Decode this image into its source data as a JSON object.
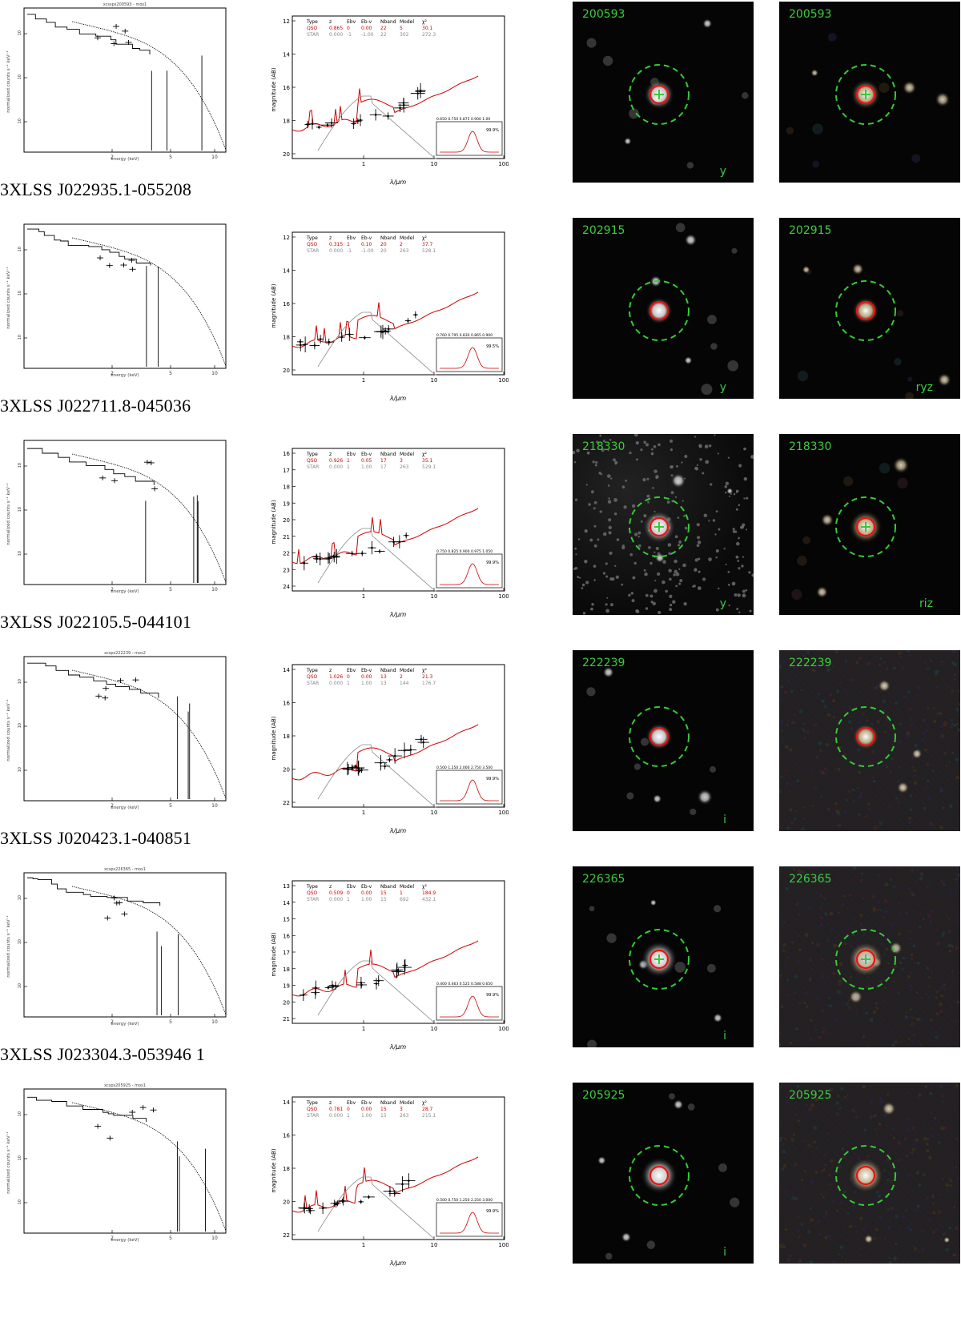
{
  "sources": [
    {
      "name": "3XLSS J022935.1-055208",
      "xspec_title": "xcssps200593 - mos1",
      "sed": {
        "header": [
          "Type",
          "z",
          "Ebv",
          "Eb-v",
          "Nband",
          "Model",
          "χ²"
        ],
        "qso": [
          "QSO",
          "0.865",
          "0",
          "0.00",
          "22",
          "5",
          "30.1"
        ],
        "star": [
          "STAR",
          "0.000",
          "-1",
          "-1.00",
          "22",
          "302",
          "272.3"
        ],
        "y_ticks": [
          "12",
          "14",
          "16",
          "18",
          "20"
        ],
        "inset_ticks": "0.650 0.750 0.875 0.900 1.00",
        "inset_pct": "99.9%"
      },
      "image_id": "200593",
      "band1": "y",
      "band2": "",
      "cross": true,
      "dim": 2
    },
    {
      "name": "3XLSS J022711.8-045036",
      "xspec_title": "",
      "sed": {
        "header": [
          "Type",
          "z",
          "Ebv",
          "Eb-v",
          "Nband",
          "Model",
          "χ²"
        ],
        "qso": [
          "QSO",
          "0.315",
          "1",
          "0.10",
          "20",
          "2",
          "37.7"
        ],
        "star": [
          "STAR",
          "0.000",
          "-1",
          "-1.00",
          "20",
          "263",
          "528.1"
        ],
        "y_ticks": [
          "12",
          "14",
          "16",
          "18",
          "20"
        ],
        "inset_ticks": "0.760 0.795 0.830 0.865 0.900",
        "inset_pct": "99.5%"
      },
      "image_id": "202915",
      "band1": "y",
      "band2": "ryz",
      "cross": false,
      "dim": 1
    },
    {
      "name": "3XLSS J022105.5-044101",
      "xspec_title": "",
      "sed": {
        "header": [
          "Type",
          "z",
          "Ebv",
          "Eb-v",
          "Nband",
          "Model",
          "χ²"
        ],
        "qso": [
          "QSO",
          "0.926",
          "1",
          "0.05",
          "17",
          "3",
          "35.1"
        ],
        "star": [
          "STAR",
          "0.000",
          "1",
          "1.00",
          "17",
          "263",
          "529.1"
        ],
        "y_ticks": [
          "16",
          "17",
          "18",
          "19",
          "20",
          "21",
          "22",
          "23",
          "24"
        ],
        "inset_ticks": "0.750 0.825 0.900 0.975 1.050",
        "inset_pct": "99.9%"
      },
      "image_id": "218330",
      "band1": "y",
      "band2": "riz",
      "cross": true,
      "dim": 3
    },
    {
      "name": "3XLSS J020423.1-040851",
      "xspec_title": "xcsps222239 - mos2",
      "sed": {
        "header": [
          "Type",
          "z",
          "Ebv",
          "Eb-v",
          "Nband",
          "Model",
          "χ²"
        ],
        "qso": [
          "QSO",
          "1.026",
          "0",
          "0.00",
          "13",
          "2",
          "21.3"
        ],
        "star": [
          "STAR",
          "0.000",
          "1",
          "1.00",
          "13",
          "144",
          "176.7"
        ],
        "y_ticks": [
          "14",
          "16",
          "18",
          "20",
          "22"
        ],
        "inset_ticks": "0.500 1.250 2.000 2.750 3.500",
        "inset_pct": "99.9%"
      },
      "image_id": "222239",
      "band1": "i",
      "band2": "",
      "cross": false,
      "dim": 1
    },
    {
      "name": "3XLSS J023304.3-053946 1",
      "xspec_title": "xcsps226365 - mos1",
      "sed": {
        "header": [
          "Type",
          "z",
          "Ebv",
          "Eb-v",
          "Nband",
          "Model",
          "χ²"
        ],
        "qso": [
          "QSO",
          "0.509",
          "0",
          "0.00",
          "15",
          "1",
          "184.9"
        ],
        "star": [
          "STAR",
          "0.000",
          "1",
          "1.00",
          "15",
          "692",
          "432.1"
        ],
        "y_ticks": [
          "13",
          "14",
          "15",
          "16",
          "17",
          "18",
          "19",
          "20",
          "21"
        ],
        "inset_ticks": "0.400 0.463 0.525 0.588 0.650",
        "inset_pct": "99.9%"
      },
      "image_id": "226365",
      "band1": "i",
      "band2": "",
      "cross": true,
      "dim": 4
    },
    {
      "name": "",
      "xspec_title": "xcsps205925 - mos1",
      "sed": {
        "header": [
          "Type",
          "z",
          "Ebv",
          "Eb-v",
          "Nband",
          "Model",
          "χ²"
        ],
        "qso": [
          "QSO",
          "0.781",
          "0",
          "0.00",
          "15",
          "3",
          "28.7"
        ],
        "star": [
          "STAR",
          "0.000",
          "1",
          "1.00",
          "15",
          "263",
          "215.1"
        ],
        "y_ticks": [
          "14",
          "16",
          "18",
          "20",
          "22"
        ],
        "inset_ticks": "0.500 0.750 1.250 2.250 3.000",
        "inset_pct": "99.9%"
      },
      "image_id": "205925",
      "band1": "i",
      "band2": "",
      "cross": false,
      "dim": 4
    }
  ],
  "xspec_axes": {
    "xlabel": "energy (keV)",
    "ylabel": "normalized counts s⁻¹ keV⁻¹",
    "x_ticks": [
      "2",
      "5",
      "10"
    ]
  },
  "sed_axes": {
    "xlabel": "λ/μm",
    "ylabel": "magnitude (AB)",
    "x_ticks": [
      "1",
      "10",
      "100"
    ]
  },
  "colors": {
    "qso": "#cc0000",
    "star": "#888888",
    "image_label": "#3ccd3c",
    "circle_outer": "#33cc33",
    "circle_inner": "#ee1111"
  }
}
